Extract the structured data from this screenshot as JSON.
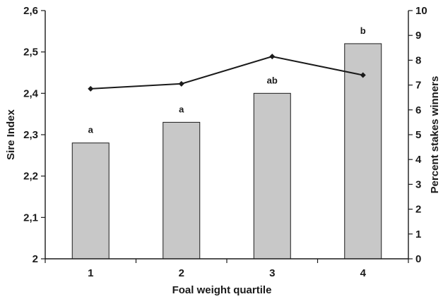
{
  "chart_data": {
    "type": "bar",
    "categories": [
      "1",
      "2",
      "3",
      "4"
    ],
    "xlabel": "Foal weight quartile",
    "series": [
      {
        "type": "bar",
        "axis": "left",
        "values": [
          2.28,
          2.33,
          2.4,
          2.52
        ],
        "labels": [
          "a",
          "a",
          "ab",
          "b"
        ],
        "color": "#c8c8c8"
      },
      {
        "type": "line",
        "axis": "right",
        "values": [
          6.85,
          7.05,
          8.15,
          7.4
        ],
        "color": "#1a1a1a",
        "marker": "diamond"
      }
    ],
    "y_left": {
      "label": "Sire Index",
      "range": [
        2.0,
        2.6
      ],
      "ticks": [
        "2",
        "2,1",
        "2,2",
        "2,3",
        "2,4",
        "2,5",
        "2,6"
      ]
    },
    "y_right": {
      "label": "Percent stakes winners",
      "range": [
        0,
        10
      ],
      "ticks": [
        "0",
        "1",
        "2",
        "3",
        "4",
        "5",
        "6",
        "7",
        "8",
        "9",
        "10"
      ]
    },
    "grid": false,
    "legend": "none"
  }
}
